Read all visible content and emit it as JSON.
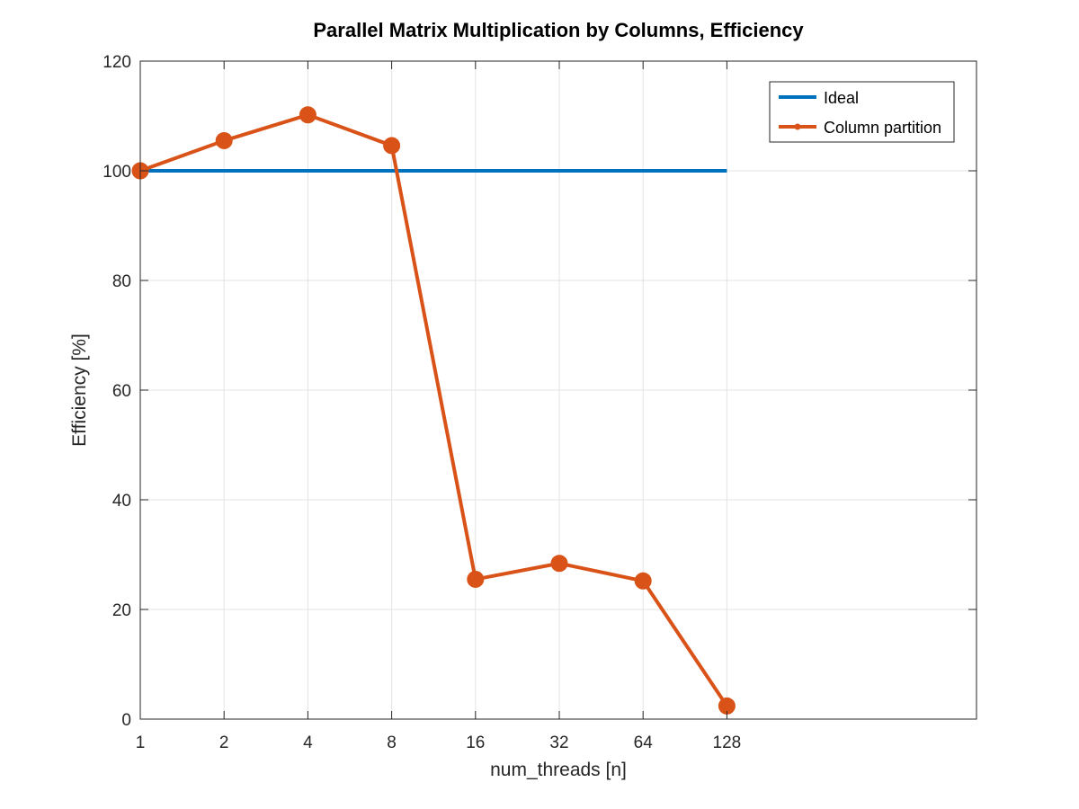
{
  "chart_data": {
    "type": "line",
    "title": "Parallel Matrix Multiplication by Columns, Efficiency",
    "xlabel": "num_threads [n]",
    "ylabel": "Efficiency [%]",
    "x_tick_labels": [
      "1",
      "2",
      "4",
      "8",
      "16",
      "32",
      "64",
      "128"
    ],
    "y_ticks": [
      0,
      20,
      40,
      60,
      80,
      100,
      120
    ],
    "ylim": [
      0,
      120
    ],
    "grid": true,
    "legend_position": "top-right",
    "series": [
      {
        "name": "Ideal",
        "color": "#0072BD",
        "marker": "none",
        "values": [
          100,
          100,
          100,
          100,
          100,
          100,
          100,
          100
        ]
      },
      {
        "name": "Column partition",
        "color": "#D95319",
        "marker": "circle",
        "values": [
          100,
          105.5,
          110.2,
          104.6,
          25.5,
          28.4,
          25.2,
          2.4
        ]
      }
    ]
  }
}
